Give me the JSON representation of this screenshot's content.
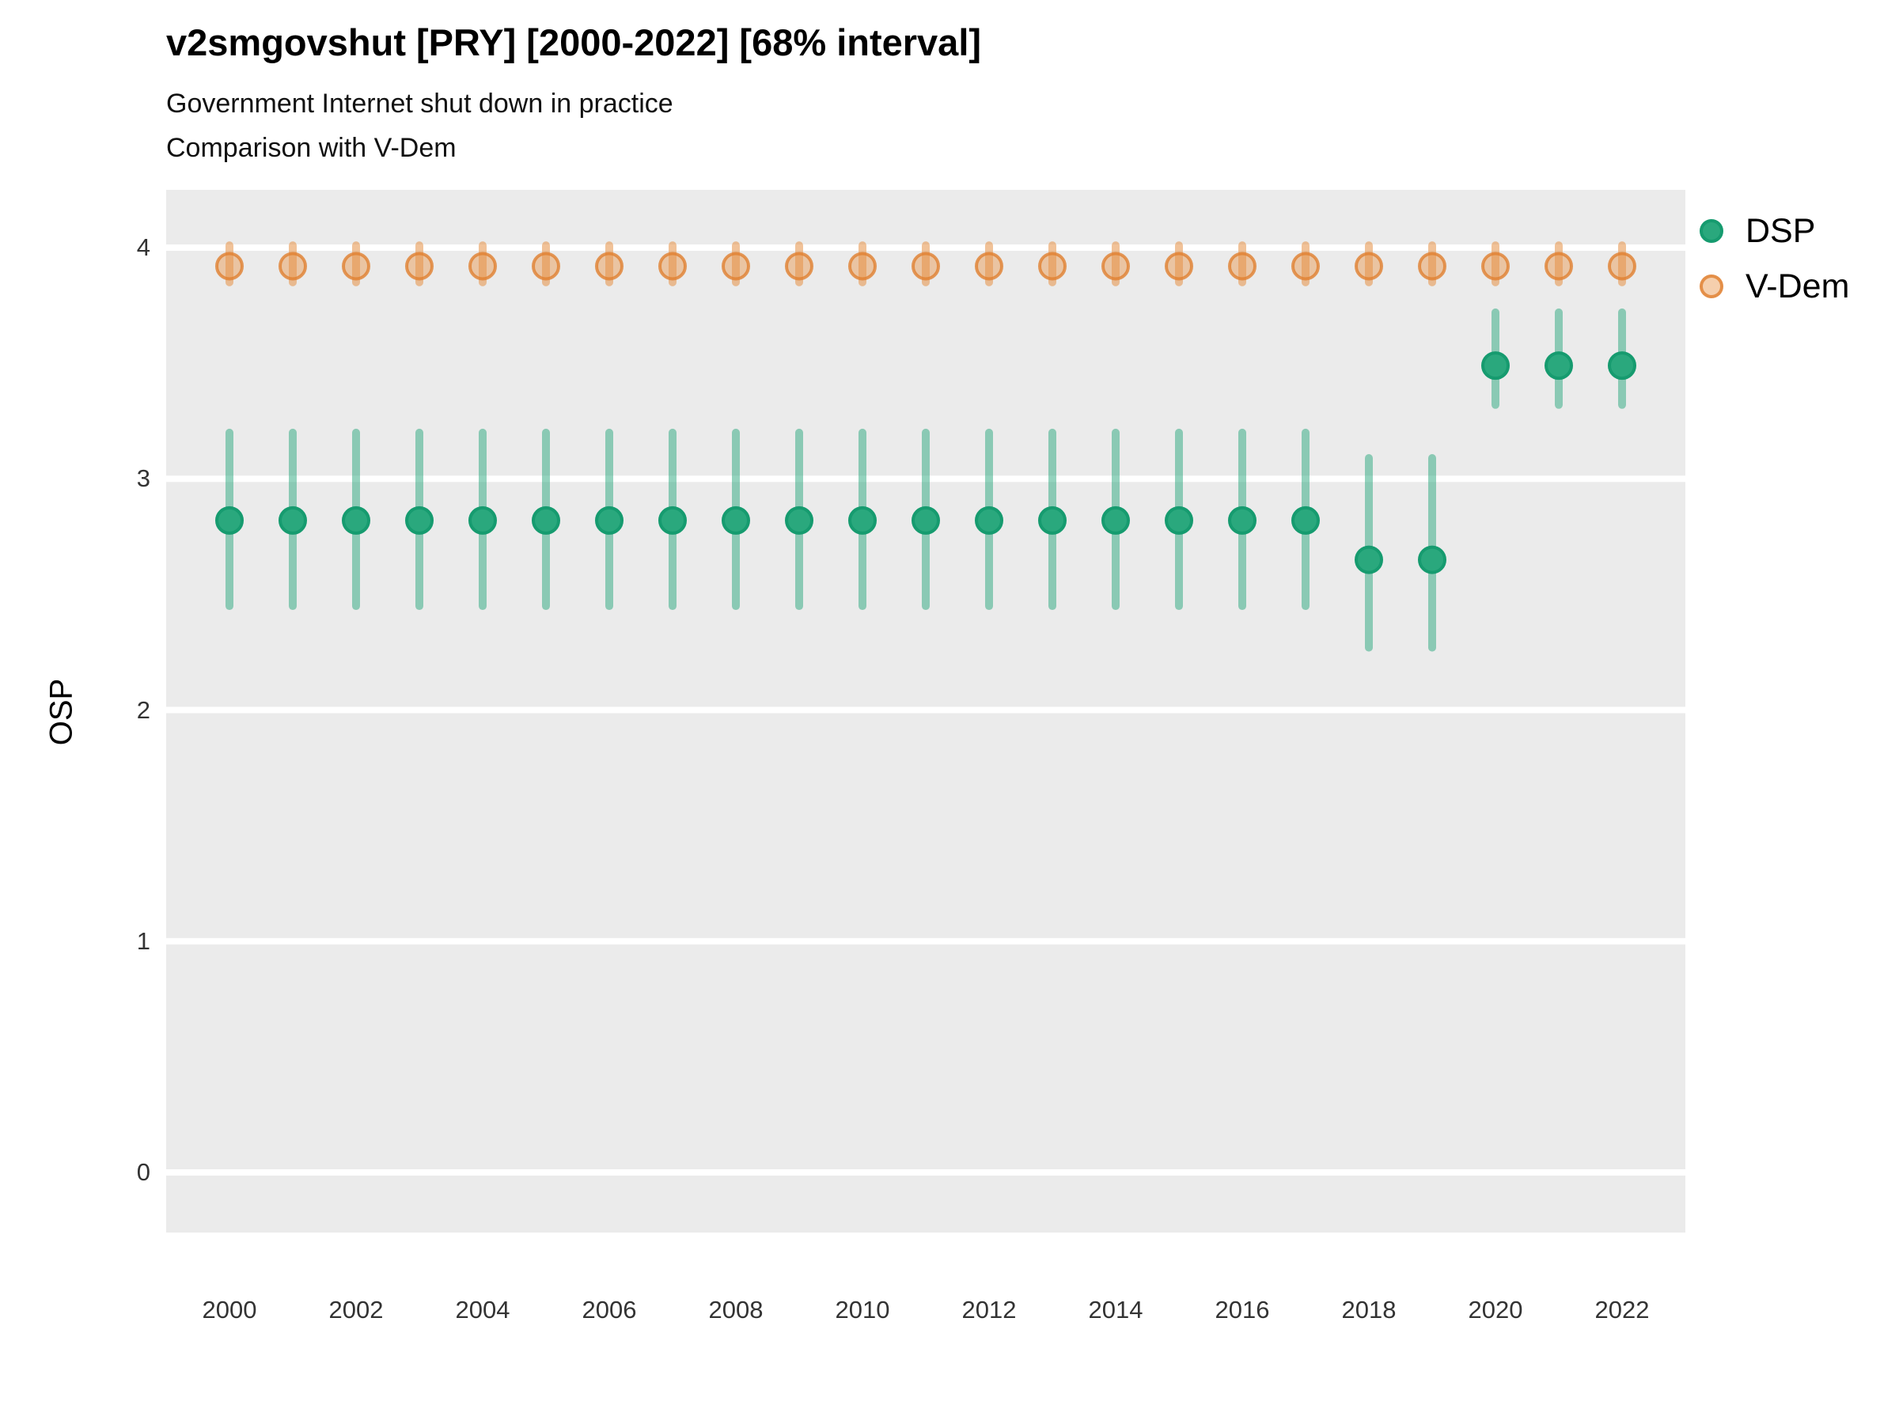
{
  "header": {
    "title": "v2smgovshut [PRY] [2000-2022] [68% interval]",
    "subtitle1": "Government Internet shut down in practice",
    "subtitle2": "Comparison with V-Dem"
  },
  "chart_data": {
    "type": "scatter",
    "title": "v2smgovshut [PRY] [2000-2022] [68% interval]",
    "subtitle": [
      "Government Internet shut down in practice",
      "Comparison with V-Dem"
    ],
    "xlabel": "",
    "ylabel": "OSP",
    "interval_label": "68% interval",
    "country": "PRY",
    "variable": "v2smgovshut",
    "ylim": [
      -0.26,
      4.25
    ],
    "yticks": [
      0,
      1,
      2,
      3,
      4
    ],
    "xtick_years": [
      2000,
      2002,
      2004,
      2006,
      2008,
      2010,
      2012,
      2014,
      2016,
      2018,
      2020,
      2022
    ],
    "x": [
      2000,
      2001,
      2002,
      2003,
      2004,
      2005,
      2006,
      2007,
      2008,
      2009,
      2010,
      2011,
      2012,
      2013,
      2014,
      2015,
      2016,
      2017,
      2018,
      2019,
      2020,
      2021,
      2022
    ],
    "grid": "horizontal-major-white",
    "panel_bg": "#EBEBEB",
    "grid_color": "#FFFFFF",
    "legend_position": "right-top",
    "series": [
      {
        "name": "DSP",
        "point_color": "#2AA87D",
        "point_stroke": "#169B6F",
        "interval_color": "rgba(42,168,125,0.5)",
        "values": [
          2.82,
          2.82,
          2.82,
          2.82,
          2.82,
          2.82,
          2.82,
          2.82,
          2.82,
          2.82,
          2.82,
          2.82,
          2.82,
          2.82,
          2.82,
          2.82,
          2.82,
          2.82,
          2.65,
          2.65,
          3.49,
          3.49,
          3.49
        ],
        "lo": [
          2.45,
          2.45,
          2.45,
          2.45,
          2.45,
          2.45,
          2.45,
          2.45,
          2.45,
          2.45,
          2.45,
          2.45,
          2.45,
          2.45,
          2.45,
          2.45,
          2.45,
          2.45,
          2.27,
          2.27,
          3.32,
          3.32,
          3.32
        ],
        "hi": [
          3.2,
          3.2,
          3.2,
          3.2,
          3.2,
          3.2,
          3.2,
          3.2,
          3.2,
          3.2,
          3.2,
          3.2,
          3.2,
          3.2,
          3.2,
          3.2,
          3.2,
          3.2,
          3.09,
          3.09,
          3.72,
          3.72,
          3.72
        ]
      },
      {
        "name": "V-Dem",
        "point_color": "rgba(232,148,74,0.45)",
        "point_stroke": "rgba(224,128,48,0.8)",
        "interval_color": "rgba(230,144,68,0.55)",
        "values": [
          3.92,
          3.92,
          3.92,
          3.92,
          3.92,
          3.92,
          3.92,
          3.92,
          3.92,
          3.92,
          3.92,
          3.92,
          3.92,
          3.92,
          3.92,
          3.92,
          3.92,
          3.92,
          3.92,
          3.92,
          3.92,
          3.92,
          3.92
        ],
        "lo": [
          3.85,
          3.85,
          3.85,
          3.85,
          3.85,
          3.85,
          3.85,
          3.85,
          3.85,
          3.85,
          3.85,
          3.85,
          3.85,
          3.85,
          3.85,
          3.85,
          3.85,
          3.85,
          3.85,
          3.85,
          3.85,
          3.85,
          3.85
        ],
        "hi": [
          4.01,
          4.01,
          4.01,
          4.01,
          4.01,
          4.01,
          4.01,
          4.01,
          4.01,
          4.01,
          4.01,
          4.01,
          4.01,
          4.01,
          4.01,
          4.01,
          4.01,
          4.01,
          4.01,
          4.01,
          4.01,
          4.01,
          4.01
        ]
      }
    ]
  }
}
